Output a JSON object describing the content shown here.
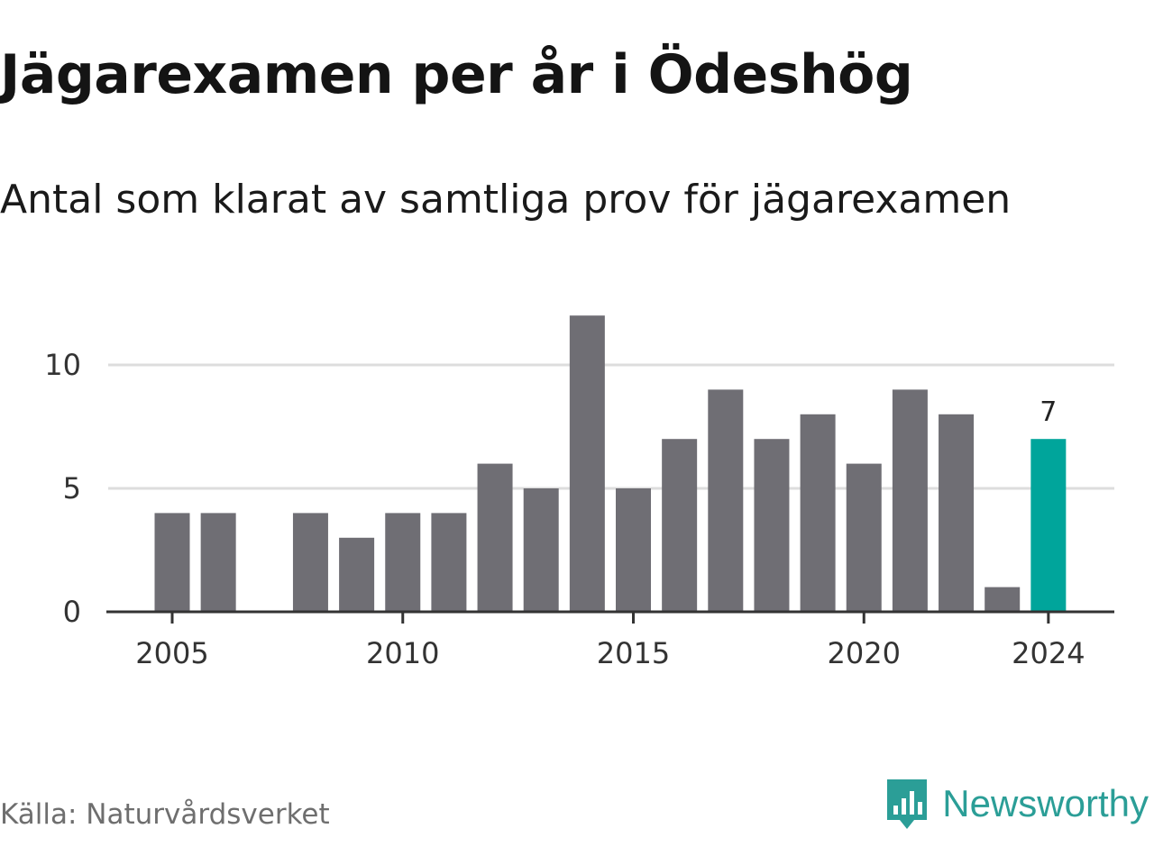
{
  "title": "Jägarexamen per år i Ödeshög",
  "subtitle": "Antal som klarat av samtliga prov för jägarexamen",
  "source": "Källa: Naturvårdsverket",
  "brand": {
    "name": "Newsworthy",
    "icon": "newsworthy-logo-icon",
    "color": "#2b9e97"
  },
  "colors": {
    "bar": "#6f6e74",
    "highlight": "#00a59b",
    "grid": "#dddddd",
    "axis": "#333333"
  },
  "chart_data": {
    "type": "bar",
    "x": [
      2005,
      2006,
      2007,
      2008,
      2009,
      2010,
      2011,
      2012,
      2013,
      2014,
      2015,
      2016,
      2017,
      2018,
      2019,
      2020,
      2021,
      2022,
      2023,
      2024
    ],
    "values": [
      4,
      4,
      null,
      4,
      3,
      4,
      4,
      6,
      5,
      12,
      5,
      7,
      9,
      7,
      8,
      6,
      9,
      8,
      1,
      7
    ],
    "highlight_index": 19,
    "highlight_label": "7",
    "x_ticks": [
      "2005",
      "2010",
      "2015",
      "2020",
      "2024"
    ],
    "y_ticks": [
      "0",
      "5",
      "10"
    ],
    "ylim": [
      0,
      12
    ],
    "grid": "horizontal"
  }
}
